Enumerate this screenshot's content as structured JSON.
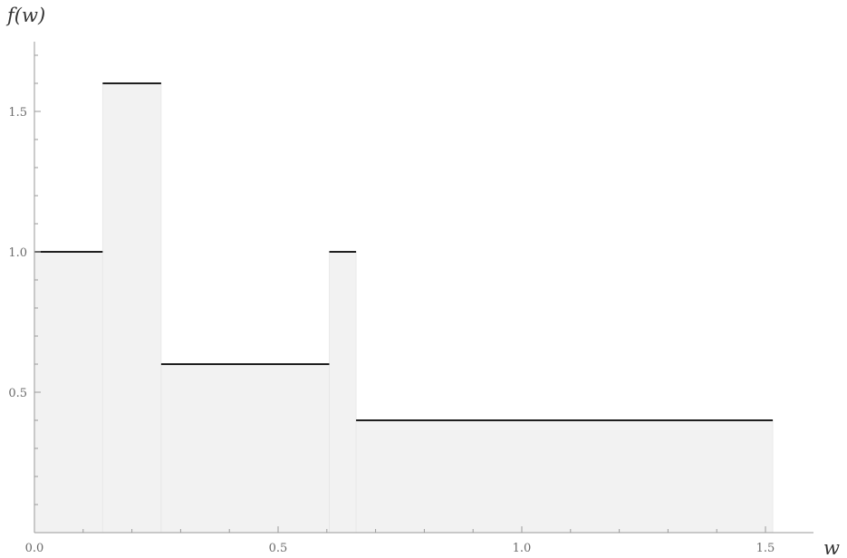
{
  "chart_data": {
    "type": "area",
    "subtype": "step-function",
    "title": "",
    "xlabel": "w",
    "ylabel": "f(w)",
    "xlim": [
      0,
      1.6
    ],
    "ylim": [
      0,
      1.75
    ],
    "x_ticks": [
      "0.0",
      "0.5",
      "1.0",
      "1.5"
    ],
    "y_ticks": [
      "0.5",
      "1.0",
      "1.5"
    ],
    "grid": false,
    "steps": [
      {
        "x0": 0.0,
        "x1": 0.14,
        "y": 1.0
      },
      {
        "x0": 0.14,
        "x1": 0.26,
        "y": 1.6
      },
      {
        "x0": 0.26,
        "x1": 0.605,
        "y": 0.6
      },
      {
        "x0": 0.605,
        "x1": 0.66,
        "y": 1.0
      },
      {
        "x0": 0.66,
        "x1": 1.515,
        "y": 0.4
      }
    ],
    "colors": {
      "fill": "#f2f2f2",
      "line": "#000000",
      "axis": "#9a9a9a",
      "label": "#6a6a6a"
    }
  }
}
